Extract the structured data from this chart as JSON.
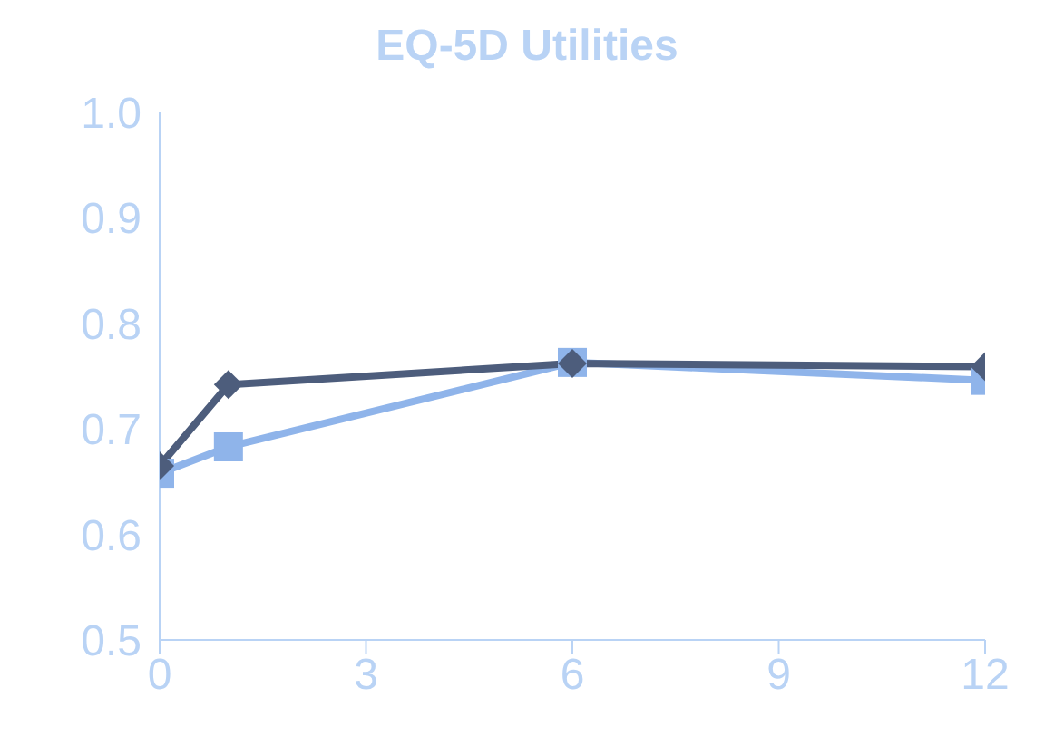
{
  "chart_data": {
    "type": "line",
    "title": "EQ-5D Utilities",
    "x": [
      0,
      1,
      6,
      12
    ],
    "series": [
      {
        "color": "#4d5d7c",
        "values": [
          0.665,
          0.742,
          0.762,
          0.759
        ],
        "marker": "diamond"
      },
      {
        "color": "#8fb4ea",
        "values": [
          0.658,
          0.683,
          0.763,
          0.746
        ],
        "marker": "square"
      }
    ],
    "xlim": [
      0,
      12
    ],
    "xticks": [
      0,
      3,
      6,
      9,
      12
    ],
    "ylim": [
      0.5,
      1.0
    ],
    "yticks": [
      0.5,
      0.6,
      0.7,
      0.8,
      0.9,
      {
        "value": 1.0,
        "label": "1.0"
      }
    ],
    "grid": false,
    "legend": false
  }
}
